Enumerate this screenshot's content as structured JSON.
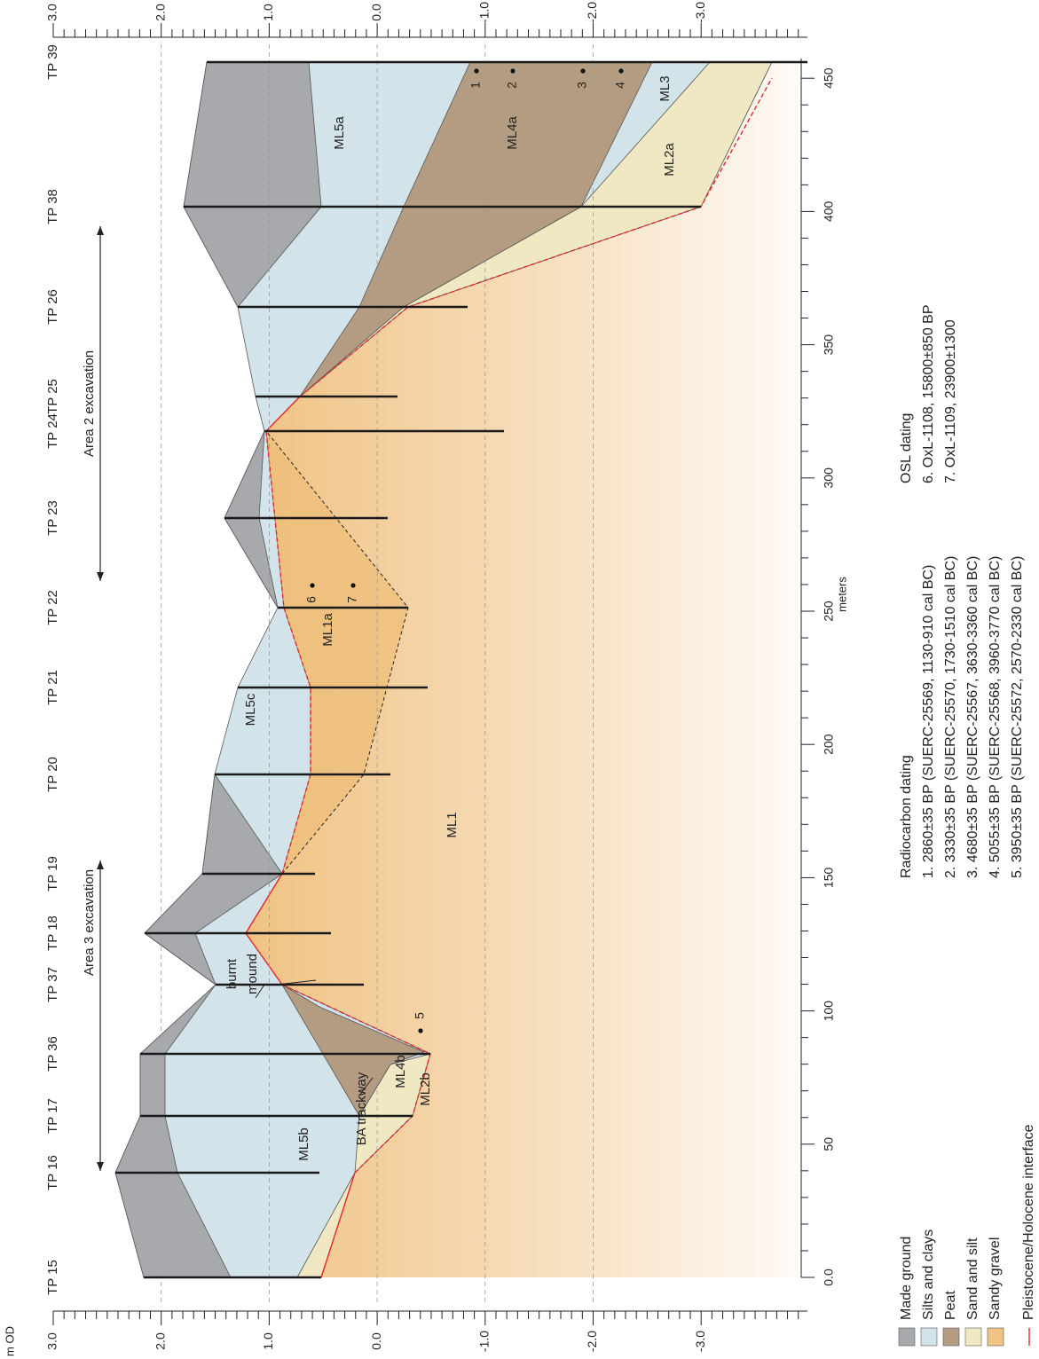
{
  "axis": {
    "elevation_unit": "m OD",
    "elevation_ticks": [
      "3.0",
      "2.0",
      "1.0",
      "0.0",
      "-1.0",
      "-2.0",
      "-3.0"
    ],
    "distance_ticks": [
      "0.0",
      "50",
      "100",
      "150",
      "200",
      "250",
      "300",
      "350",
      "400",
      "450"
    ],
    "distance_label": "meters"
  },
  "test_pits": [
    "TP 15",
    "TP 16",
    "TP 17",
    "TP 36",
    "TP 37",
    "TP 18",
    "TP 19",
    "TP 20",
    "TP 21",
    "TP 22",
    "TP 23",
    "TP 24",
    "TP 25",
    "TP 26",
    "TP 38",
    "TP 39"
  ],
  "excavations": [
    "Area 3 excavation",
    "Area 2 excavation"
  ],
  "layers": [
    "ML5a",
    "ML4a",
    "ML3",
    "ML2a",
    "ML5c",
    "ML1a",
    "ML1",
    "ML5b",
    "ML4b",
    "ML2b"
  ],
  "annotations": [
    "BA trackway",
    "burnt",
    "mound"
  ],
  "samples": [
    "1",
    "2",
    "3",
    "4",
    "5",
    "6",
    "7"
  ],
  "legend": [
    "Made ground",
    "Silts and clays",
    "Peat",
    "Sand and silt",
    "Sandy gravel",
    "Pleistocene/Holocene interface"
  ],
  "radiocarbon": {
    "title": "Radiocarbon dating",
    "items": [
      "1. 2860±35 BP (SUERC-25569, 1130-910 cal BC)",
      "2. 3330±35 BP (SUERC-25570, 1730-1510 cal BC)",
      "3. 4680±35 BP (SUERC-25567, 3630-3360 cal BC)",
      "4. 5055±35 BP (SUERC-25568, 3960-3770 cal BC)",
      "5. 3950±35 BP (SUERC-25572, 2570-2330 cal BC)"
    ]
  },
  "osl": {
    "title": "OSL dating",
    "items": [
      "6. OxL-1108, 15800±850 BP",
      "7. OxL-1109, 23900±1300"
    ]
  }
}
